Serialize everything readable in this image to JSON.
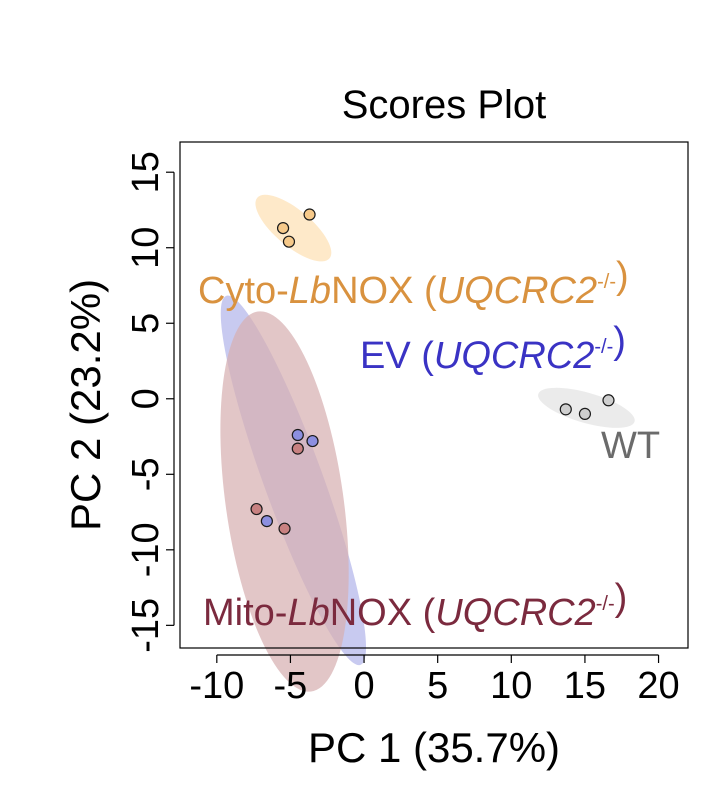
{
  "chart_data": {
    "type": "scatter",
    "title": "Scores Plot",
    "xlabel": "PC 1 (35.7%)",
    "ylabel": "PC 2 (23.2%)",
    "xlim": [
      -12.5,
      22
    ],
    "ylim": [
      -16.5,
      17
    ],
    "x_ticks": [
      -10,
      -5,
      0,
      5,
      10,
      15,
      20
    ],
    "y_ticks": [
      -15,
      -10,
      -5,
      0,
      5,
      10,
      15
    ],
    "x_tick_labels": [
      "-10",
      "-5",
      "0",
      "5",
      "10",
      "15",
      "20"
    ],
    "y_tick_labels": [
      "-15",
      "-10",
      "-5",
      "0",
      "5",
      "10",
      "15"
    ],
    "grid": false,
    "series": [
      {
        "label_parts": [
          {
            "text": "Cyto-",
            "italic": false
          },
          {
            "text": "Lb",
            "italic": true
          },
          {
            "text": "NOX (",
            "italic": false
          },
          {
            "text": "UQCRC2",
            "italic": true
          },
          {
            "text": "-/-",
            "italic": false,
            "superscript": true
          },
          {
            "text": ")",
            "italic": false
          }
        ],
        "text_color": "#d9923f",
        "fill_color": "#f6c98a",
        "ellipse_color": "#fde0b4",
        "points": [
          {
            "x": -5.5,
            "y": 11.3
          },
          {
            "x": -5.1,
            "y": 10.4
          },
          {
            "x": -3.7,
            "y": 12.2
          }
        ],
        "ellipse": {
          "cx": -4.8,
          "cy": 11.3,
          "rx": 3.2,
          "ry": 1.2,
          "angle_deg": 40
        }
      },
      {
        "label_parts": [
          {
            "text": "EV (",
            "italic": false
          },
          {
            "text": "UQCRC2",
            "italic": true
          },
          {
            "text": "-/-",
            "italic": false,
            "superscript": true
          },
          {
            "text": ")",
            "italic": false
          }
        ],
        "text_color": "#3a33c4",
        "fill_color": "#8c8fe0",
        "ellipse_color": "#b3b5ea",
        "points": [
          {
            "x": -4.5,
            "y": -2.4
          },
          {
            "x": -3.5,
            "y": -2.8
          },
          {
            "x": -6.6,
            "y": -8.1
          }
        ],
        "ellipse": {
          "cx": -4.8,
          "cy": -5.4,
          "rx": 2.0,
          "ry": 13.0,
          "angle_deg": -20
        }
      },
      {
        "label_parts": [
          {
            "text": "Mito-",
            "italic": false
          },
          {
            "text": "Lb",
            "italic": true
          },
          {
            "text": "NOX (",
            "italic": false
          },
          {
            "text": "UQCRC2",
            "italic": true
          },
          {
            "text": "-/-",
            "italic": false,
            "superscript": true
          },
          {
            "text": ")",
            "italic": false
          }
        ],
        "text_color": "#7b2a3e",
        "fill_color": "#c88181",
        "ellipse_color": "#d7b0b2",
        "points": [
          {
            "x": -4.5,
            "y": -3.3
          },
          {
            "x": -7.3,
            "y": -7.3
          },
          {
            "x": -5.4,
            "y": -8.6
          }
        ],
        "ellipse": {
          "cx": -5.4,
          "cy": -6.8,
          "rx": 4.0,
          "ry": 12.7,
          "angle_deg": -8
        }
      },
      {
        "label_parts": [
          {
            "text": "WT",
            "italic": false
          }
        ],
        "text_color": "#6b6b6b",
        "fill_color": "#cfcfcf",
        "ellipse_color": "#e3e3e3",
        "points": [
          {
            "x": 13.7,
            "y": -0.7
          },
          {
            "x": 15.0,
            "y": -1.0
          },
          {
            "x": 16.6,
            "y": -0.1
          }
        ],
        "ellipse": {
          "cx": 15.1,
          "cy": -0.6,
          "rx": 3.4,
          "ry": 1.0,
          "angle_deg": 16
        }
      }
    ]
  }
}
